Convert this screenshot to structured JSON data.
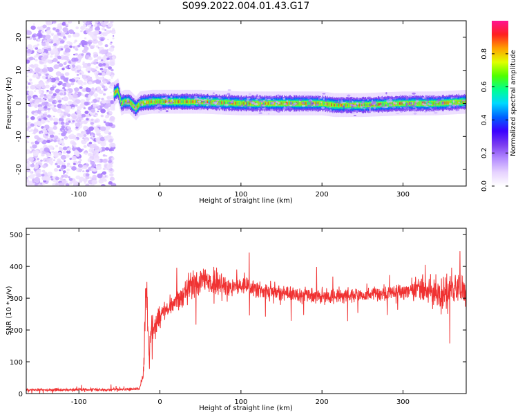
{
  "figure": {
    "title": "S099.2022.004.01.43.G17"
  },
  "colors": {
    "snr_line": "#f03232",
    "colormap": [
      "#ffffff",
      "#e6d2ff",
      "#b48cff",
      "#7b3cf0",
      "#3b00ff",
      "#0060ff",
      "#00d8ff",
      "#00ff90",
      "#50ff00",
      "#e0ff00",
      "#ffa000",
      "#ff2020",
      "#ff1493"
    ]
  },
  "chart_data": [
    {
      "id": "spectrogram",
      "type": "heatmap",
      "xlabel": "Height of straight line (km)",
      "ylabel": "Frequency (Hz)",
      "xlim": [
        -165,
        378
      ],
      "ylim": [
        -25,
        25
      ],
      "xticks": [
        -100,
        0,
        100,
        200,
        300
      ],
      "yticks": [
        -20,
        -10,
        0,
        10,
        20
      ],
      "colorbar": {
        "label": "Normalized spectral amplitude",
        "range": [
          0,
          1
        ],
        "ticks": [
          0.0,
          0.2,
          0.4,
          0.6,
          0.8
        ]
      },
      "regions": [
        {
          "description": "noise",
          "x_range": [
            -165,
            -57
          ],
          "y_range": [
            -25,
            25
          ],
          "amplitude": [
            0.05,
            0.2
          ]
        },
        {
          "description": "signal ridge",
          "x_range": [
            -57,
            378
          ],
          "frequency_center": 0,
          "width_hz": 3,
          "peak_amplitude": 0.95
        }
      ],
      "ridge_center_hz": [
        [
          -57,
          3
        ],
        [
          -52,
          4
        ],
        [
          -48,
          0
        ],
        [
          -44,
          0.5
        ],
        [
          -38,
          0.5
        ],
        [
          -30,
          -1.5
        ],
        [
          -25,
          0
        ],
        [
          -10,
          0.5
        ],
        [
          0,
          0.5
        ],
        [
          20,
          0.5
        ],
        [
          50,
          0.5
        ],
        [
          100,
          0
        ],
        [
          150,
          0
        ],
        [
          200,
          0
        ],
        [
          215,
          -0.5
        ],
        [
          250,
          -0.5
        ],
        [
          300,
          0
        ],
        [
          340,
          0
        ],
        [
          378,
          0.5
        ]
      ]
    },
    {
      "id": "snr",
      "type": "line",
      "xlabel": "Height of straight line (km)",
      "ylabel": "SNR (10 * v/v)",
      "xlim": [
        -165,
        378
      ],
      "ylim": [
        0,
        520
      ],
      "xticks": [
        -100,
        0,
        100,
        200,
        300
      ],
      "yticks": [
        0,
        100,
        200,
        300,
        400,
        500
      ],
      "series": [
        {
          "x": [
            -165,
            -140,
            -100,
            -60,
            -30,
            -25,
            -22,
            -20,
            -19,
            -18,
            -17,
            -16,
            -15,
            -14,
            -13,
            -12,
            -10,
            -8,
            -5,
            0,
            5,
            10,
            20,
            30,
            40,
            50,
            60,
            70,
            80,
            90,
            100,
            120,
            140,
            160,
            180,
            200,
            220,
            240,
            260,
            280,
            300,
            320,
            340,
            350,
            360,
            370,
            378
          ],
          "mean": [
            12,
            12,
            12,
            12,
            14,
            20,
            40,
            80,
            140,
            280,
            300,
            320,
            200,
            150,
            120,
            180,
            230,
            200,
            220,
            250,
            260,
            270,
            290,
            320,
            340,
            345,
            350,
            345,
            340,
            340,
            335,
            330,
            320,
            315,
            310,
            305,
            305,
            310,
            310,
            315,
            320,
            330,
            320,
            310,
            330,
            330,
            320
          ],
          "noise": [
            5,
            5,
            5,
            5,
            5,
            8,
            15,
            30,
            60,
            80,
            80,
            70,
            60,
            50,
            50,
            50,
            45,
            40,
            40,
            35,
            35,
            35,
            40,
            45,
            55,
            60,
            55,
            50,
            45,
            40,
            40,
            35,
            30,
            28,
            28,
            25,
            25,
            25,
            25,
            28,
            30,
            40,
            55,
            70,
            70,
            60,
            50
          ]
        }
      ]
    }
  ]
}
